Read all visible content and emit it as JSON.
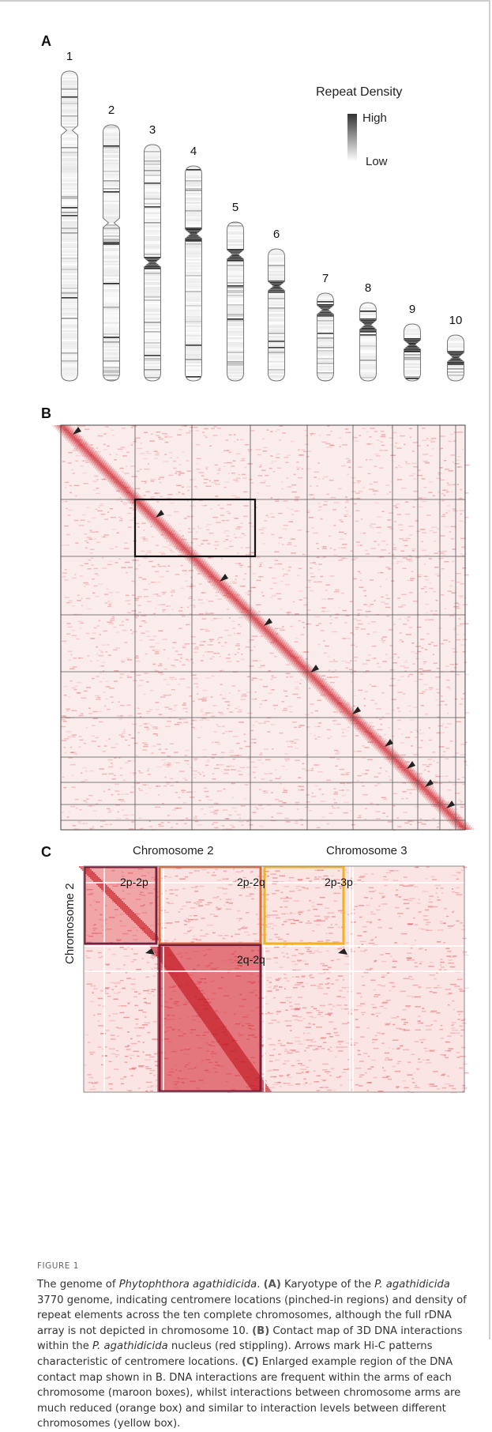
{
  "panel_a": {
    "letter": "A",
    "legend_title": "Repeat Density",
    "legend_high": "High",
    "legend_low": "Low",
    "chromosomes": [
      "1",
      "2",
      "3",
      "4",
      "5",
      "6",
      "7",
      "8",
      "9",
      "10"
    ]
  },
  "panel_b": {
    "letter": "B"
  },
  "panel_c": {
    "letter": "C",
    "col_header_1": "Chromosome 2",
    "col_header_2": "Chromosome 3",
    "row_header": "Chromosome 2",
    "box_2p2p": "2p-2p",
    "box_2p2q": "2p-2q",
    "box_2p3p": "2p-3p",
    "box_2q2q": "2q-2q",
    "colors": {
      "maroon": "#7a1f3b",
      "orange": "#e0673a",
      "yellow": "#f2b21b",
      "contact": "#d7232a"
    }
  },
  "figure_label": "FIGURE 1",
  "caption": {
    "s1": "The genome of ",
    "s1_italic": "Phytophthora agathidicida",
    "s1_end": ". ",
    "a_tag": "(A)",
    "a_text_1": " Karyotype of the ",
    "a_italic": "P. agathidicida",
    "a_text_2": " 3770 genome, indicating centromere locations (pinched-in regions) and density of repeat elements across the ten complete chromosomes, although the full rDNA array is not depicted in chromosome 10. ",
    "b_tag": "(B)",
    "b_text_1": " Contact map of 3D DNA interactions within the ",
    "b_italic": "P. agathidicida",
    "b_text_2": " nucleus (red stippling). Arrows mark Hi-C patterns characteristic of centromere locations. ",
    "c_tag": "(C)",
    "c_text": " Enlarged example region of the DNA contact map shown in B. DNA interactions are frequent within the arms of each chromosome (maroon boxes), whilst interactions between chromosome arms are much reduced (orange box) and similar to interaction levels between different chromosomes (yellow box)."
  }
}
